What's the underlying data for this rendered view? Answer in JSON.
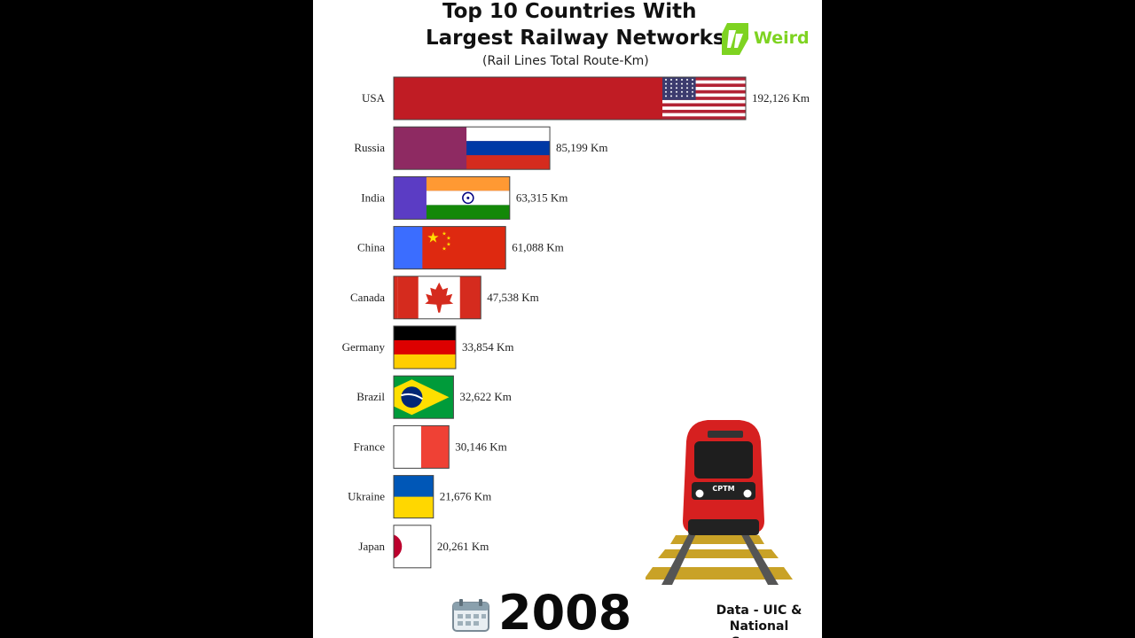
{
  "title_line1": "Top 10 Countries With",
  "title_line2": "Largest Railway Networks",
  "subtitle": "(Rail Lines Total Route-Km)",
  "brand": "Weird",
  "year": "2008",
  "source_line1": "Data - UIC &",
  "source_line2": "National Sources",
  "train_label": "CPTM",
  "colors": {
    "accent": "#7ed321",
    "background": "#000000",
    "panel": "#ffffff"
  },
  "chart_data": {
    "type": "bar",
    "orientation": "horizontal",
    "title": "Top 10 Countries With Largest Railway Networks",
    "subtitle": "(Rail Lines Total Route-Km)",
    "unit": "Km",
    "categories": [
      "USA",
      "Russia",
      "India",
      "China",
      "Canada",
      "Germany",
      "Brazil",
      "France",
      "Ukraine",
      "Japan"
    ],
    "values": [
      192126,
      85199,
      63315,
      61088,
      47538,
      33854,
      32622,
      30146,
      21676,
      20261
    ],
    "value_labels": [
      "192,126 Km",
      "85,199 Km",
      "63,315 Km",
      "61,088 Km",
      "47,538 Km",
      "33,854 Km",
      "32,622 Km",
      "30,146 Km",
      "21,676 Km",
      "20,261 Km"
    ],
    "bar_colors": [
      "#c01c24",
      "#8e2a62",
      "#5b3cc4",
      "#3b6dff",
      "#d52b1e",
      "#000000",
      "#009b3a",
      "#0055a4",
      "#0057b7",
      "#ffffff"
    ],
    "flags": [
      "us-flag",
      "russia-flag",
      "india-flag",
      "china-flag",
      "canada-flag",
      "germany-flag",
      "brazil-flag",
      "france-flag",
      "ukraine-flag",
      "japan-flag"
    ],
    "grid": false,
    "legend": "none"
  }
}
